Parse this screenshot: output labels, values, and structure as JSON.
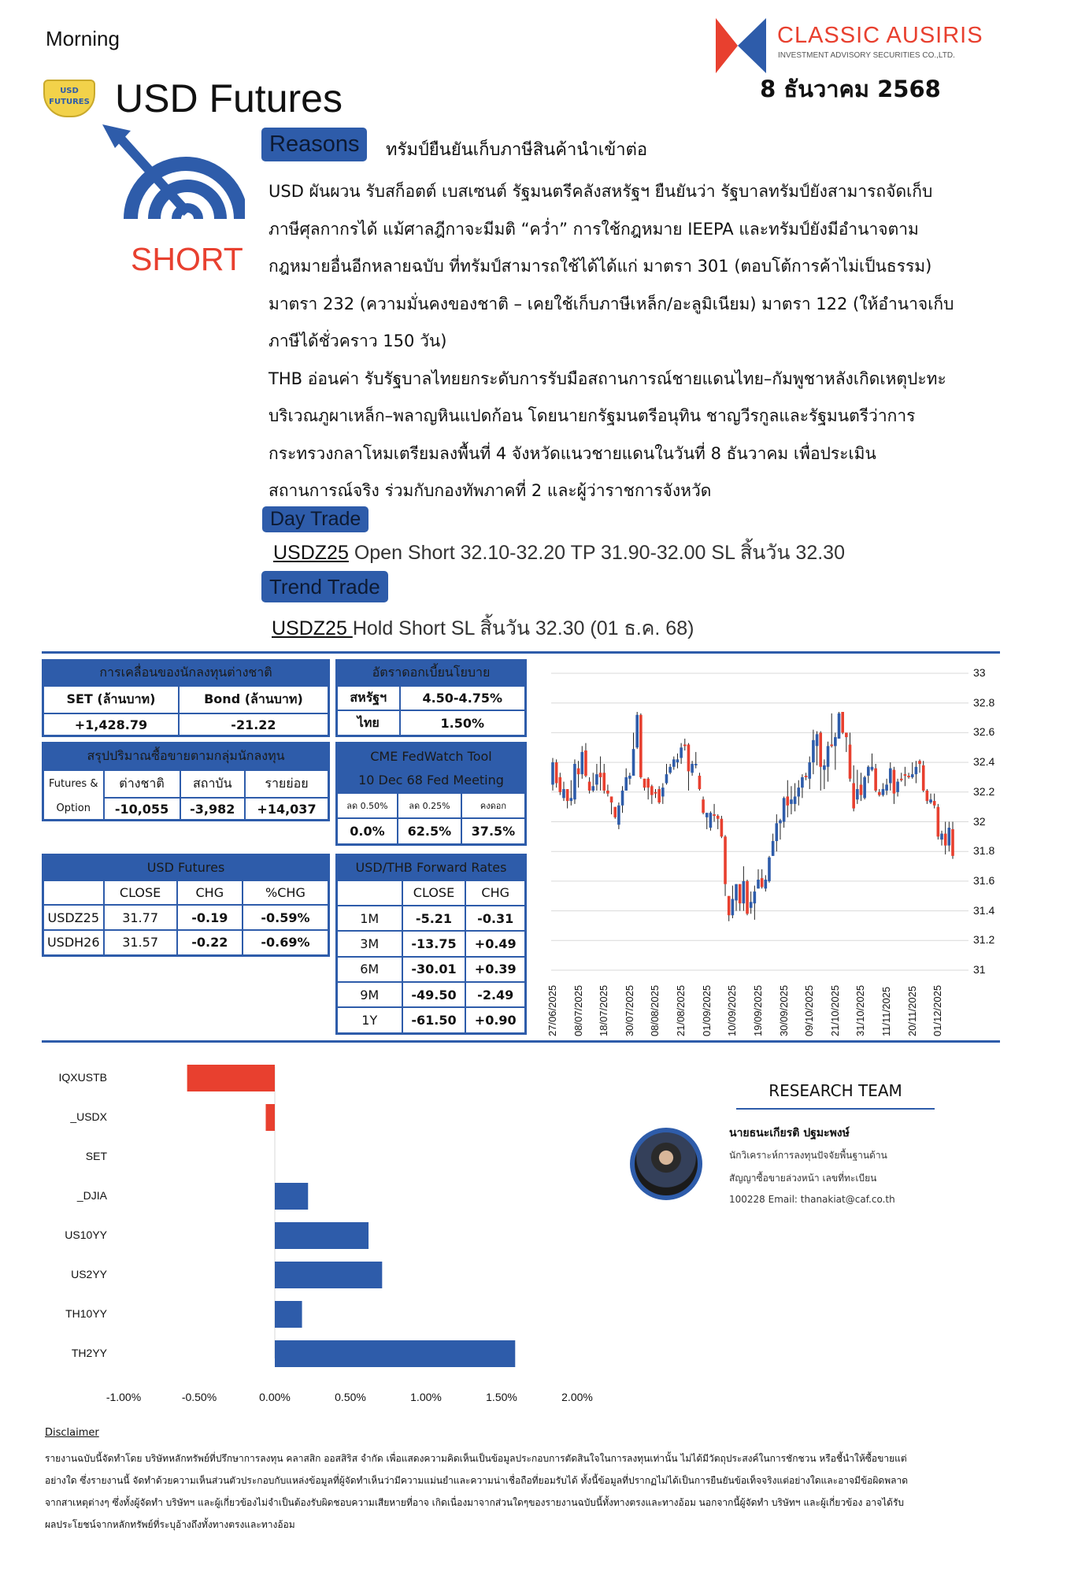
{
  "header": {
    "session": "Morning",
    "title": "USD Futures",
    "date": "8 ธันวาคม 2568",
    "logo_name": "CLASSIC AUSIRIS",
    "logo_sub": "INVESTMENT ADVISORY SECURITIES CO.,LTD.",
    "badge_text": "USD FUTURES",
    "signal": "SHORT"
  },
  "colors": {
    "brand_blue": "#2e5caa",
    "brand_red": "#e8402f",
    "up": "#2e5caa",
    "down": "#e8402f"
  },
  "reasons": {
    "label": "Reasons",
    "headline": "ทรัมป์ยืนยันเก็บภาษีสินค้านำเข้าต่อ",
    "lines": [
      "USD ผันผวน รับสก็อตต์ เบสเซนต์ รัฐมนตรีคลังสหรัฐฯ ยืนยันว่า รัฐบาลทรัมป์ยังสามารถจัดเก็บ",
      "ภาษีศุลกากรได้ แม้ศาลฎีกาจะมีมติ “คว่ำ” การใช้กฎหมาย IEEPA และทรัมป์ยังมีอำนาจตาม",
      "กฎหมายอื่นอีกหลายฉบับ ที่ทรัมป์สามารถใช้ได้ได้แก่ มาตรา 301 (ตอบโต้การค้าไม่เป็นธรรม)",
      "มาตรา 232 (ความมั่นคงของชาติ – เคยใช้เก็บภาษีเหล็ก/อะลูมิเนียม) มาตรา 122 (ให้อำนาจเก็บ",
      "ภาษีได้ชั่วคราว 150 วัน)",
      "THB อ่อนค่า รับรัฐบาลไทยยกระดับการรับมือสถานการณ์ชายแดนไทย–กัมพูชาหลังเกิดเหตุปะทะ",
      "บริเวณภูผาเหล็ก–พลาญหินแปดก้อน โดยนายกรัฐมนตรีอนุทิน ชาญวีรกูลและรัฐมนตรีว่าการ",
      "กระทรวงกลาโหมเตรียมลงพื้นที่ 4 จังหวัดแนวชายแดนในวันที่ 8 ธันวาคม เพื่อประเมิน",
      "สถานการณ์จริง ร่วมกับกองทัพภาคที่ 2 และผู้ว่าราชการจังหวัด"
    ]
  },
  "day_trade": {
    "label": "Day Trade",
    "symbol": "USDZ25",
    "text": " Open Short 32.10-32.20 TP 31.90-32.00 SL สิ้นวัน 32.30"
  },
  "trend_trade": {
    "label": "Trend Trade",
    "symbol": "USDZ25 ",
    "text": "Hold Short SL สิ้นวัน 32.30 (01 ธ.ค. 68)"
  },
  "foreign_flow": {
    "title": "การเคลื่อนของนักลงทุนต่างชาติ",
    "headers": [
      "SET (ล้านบาท)",
      "Bond (ล้านบาท)"
    ],
    "values": [
      "+1,428.79",
      "-21.22"
    ]
  },
  "policy_rate": {
    "title": "อัตราดอกเบี้ยนโยบาย",
    "rows": [
      [
        "สหรัฐฯ",
        "4.50-4.75%"
      ],
      [
        "ไทย",
        "1.50%"
      ]
    ]
  },
  "investor_groups": {
    "title": "สรุปปริมาณซื้อขายตามกลุ่มนักลงทุน",
    "label1": "Futures &",
    "label2": "Option",
    "headers": [
      "ต่างชาติ",
      "สถาบัน",
      "รายย่อย"
    ],
    "values": [
      "-10,055",
      "-3,982",
      "+14,037"
    ]
  },
  "fedwatch": {
    "title": "CME FedWatch Tool",
    "subtitle": "10 Dec 68 Fed Meeting",
    "headers": [
      "ลด 0.50%",
      "ลด 0.25%",
      "คงดอก"
    ],
    "values": [
      "0.0%",
      "62.5%",
      "37.5%"
    ]
  },
  "usd_futures": {
    "title": "USD Futures",
    "headers": [
      "",
      "CLOSE",
      "CHG",
      "%CHG"
    ],
    "rows": [
      [
        "USDZ25",
        "31.77",
        "-0.19",
        "-0.59%"
      ],
      [
        "USDH26",
        "31.57",
        "-0.22",
        "-0.69%"
      ]
    ]
  },
  "forward": {
    "title": "USD/THB Forward Rates",
    "headers": [
      "",
      "CLOSE",
      "CHG"
    ],
    "rows": [
      [
        "1M",
        "-5.21",
        "-0.31"
      ],
      [
        "3M",
        "-13.75",
        "+0.49"
      ],
      [
        "6M",
        "-30.01",
        "+0.39"
      ],
      [
        "9M",
        "-49.50",
        "-2.49"
      ],
      [
        "1Y",
        "-61.50",
        "+0.90"
      ]
    ]
  },
  "chart_data": [
    {
      "type": "candlestick",
      "ylim": [
        31,
        33
      ],
      "yticks": [
        "33",
        "32.8",
        "32.6",
        "32.4",
        "32.2",
        "32",
        "31.8",
        "31.6",
        "31.4",
        "31.2",
        "31"
      ],
      "grid": true,
      "xticks": [
        "27/06/2025",
        "08/07/2025",
        "18/07/2025",
        "30/07/2025",
        "08/08/2025",
        "21/08/2025",
        "01/09/2025",
        "10/09/2025",
        "19/09/2025",
        "30/09/2025",
        "09/10/2025",
        "21/10/2025",
        "31/10/2025",
        "11/11/2025",
        "20/11/2025",
        "01/12/2025"
      ],
      "ohlc": [
        [
          32.25,
          32.43,
          32.21,
          32.4
        ],
        [
          32.4,
          32.42,
          32.23,
          32.26
        ],
        [
          32.3,
          32.33,
          32.18,
          32.2
        ],
        [
          32.16,
          32.27,
          32.14,
          32.22
        ],
        [
          32.22,
          32.22,
          32.09,
          32.14
        ],
        [
          32.14,
          32.28,
          32.11,
          32.16
        ],
        [
          32.15,
          32.42,
          32.12,
          32.39
        ],
        [
          32.36,
          32.41,
          32.23,
          32.32
        ],
        [
          32.32,
          32.51,
          32.29,
          32.47
        ],
        [
          32.48,
          32.53,
          32.3,
          32.31
        ],
        [
          32.27,
          32.3,
          32.19,
          32.21
        ],
        [
          32.21,
          32.33,
          32.2,
          32.24
        ],
        [
          32.25,
          32.39,
          32.21,
          32.32
        ],
        [
          32.33,
          32.44,
          32.21,
          32.3
        ],
        [
          32.33,
          32.39,
          32.19,
          32.21
        ],
        [
          32.21,
          32.25,
          32.17,
          32.19
        ],
        [
          32.17,
          32.17,
          32.05,
          32.13
        ],
        [
          32.1,
          32.1,
          32.02,
          32.03
        ],
        [
          31.98,
          32.13,
          31.95,
          32.11
        ],
        [
          32.11,
          32.24,
          32.06,
          32.21
        ],
        [
          32.21,
          32.36,
          32.21,
          32.3
        ],
        [
          32.29,
          32.33,
          32.25,
          32.31
        ],
        [
          32.31,
          32.6,
          32.31,
          32.49
        ],
        [
          32.5,
          32.74,
          32.49,
          32.72
        ],
        [
          32.72,
          32.73,
          32.29,
          32.3
        ],
        [
          32.29,
          32.29,
          32.21,
          32.23
        ],
        [
          32.29,
          32.3,
          32.15,
          32.23
        ],
        [
          32.24,
          32.25,
          32.12,
          32.18
        ],
        [
          32.2,
          32.22,
          32.16,
          32.19
        ],
        [
          32.22,
          32.24,
          32.12,
          32.13
        ],
        [
          32.17,
          32.26,
          32.12,
          32.23
        ],
        [
          32.26,
          32.39,
          32.25,
          32.32
        ],
        [
          32.33,
          32.39,
          32.32,
          32.37
        ],
        [
          32.37,
          32.44,
          32.35,
          32.42
        ],
        [
          32.4,
          32.46,
          32.36,
          32.42
        ],
        [
          32.43,
          32.53,
          32.39,
          32.5
        ],
        [
          32.52,
          32.56,
          32.48,
          32.51
        ],
        [
          32.52,
          32.53,
          32.21,
          32.34
        ],
        [
          32.33,
          32.41,
          32.31,
          32.39
        ],
        [
          32.38,
          32.47,
          32.36,
          32.39
        ],
        [
          32.31,
          32.33,
          32.21,
          32.22
        ],
        [
          32.15,
          32.17,
          32.05,
          32.06
        ],
        [
          32.03,
          32.06,
          31.95,
          32.06
        ],
        [
          31.96,
          32.07,
          31.94,
          32.06
        ],
        [
          32.05,
          32.12,
          32.0,
          32.04
        ],
        [
          32.04,
          32.05,
          31.95,
          32.02
        ],
        [
          32.02,
          32.04,
          31.89,
          31.9
        ],
        [
          31.9,
          31.91,
          31.5,
          31.58
        ],
        [
          31.5,
          31.5,
          31.33,
          31.37
        ],
        [
          31.37,
          31.57,
          31.35,
          31.48
        ],
        [
          31.47,
          31.58,
          31.4,
          31.58
        ],
        [
          31.58,
          31.58,
          31.4,
          31.45
        ],
        [
          31.45,
          31.7,
          31.4,
          31.6
        ],
        [
          31.6,
          31.61,
          31.37,
          31.38
        ],
        [
          31.42,
          31.53,
          31.38,
          31.46
        ],
        [
          31.45,
          31.57,
          31.34,
          31.53
        ],
        [
          31.55,
          31.68,
          31.55,
          31.61
        ],
        [
          31.62,
          31.68,
          31.55,
          31.56
        ],
        [
          31.55,
          31.64,
          31.53,
          31.61
        ],
        [
          31.6,
          31.77,
          31.59,
          31.76
        ],
        [
          31.77,
          31.92,
          31.77,
          31.87
        ],
        [
          31.87,
          32.05,
          31.8,
          31.99
        ],
        [
          31.99,
          32.02,
          31.88,
          32.01
        ],
        [
          32.0,
          32.17,
          31.96,
          32.16
        ],
        [
          32.17,
          32.28,
          32.03,
          32.11
        ],
        [
          32.12,
          32.24,
          32.05,
          32.15
        ],
        [
          32.12,
          32.26,
          32.07,
          32.17
        ],
        [
          32.17,
          32.28,
          32.11,
          32.23
        ],
        [
          32.23,
          32.32,
          32.16,
          32.3
        ],
        [
          32.31,
          32.33,
          32.28,
          32.3
        ],
        [
          32.29,
          32.44,
          32.22,
          32.4
        ],
        [
          32.4,
          32.62,
          32.32,
          32.55
        ],
        [
          32.51,
          32.61,
          32.38,
          32.59
        ],
        [
          32.6,
          32.61,
          32.21,
          32.37
        ],
        [
          32.35,
          32.42,
          32.22,
          32.38
        ],
        [
          32.37,
          32.54,
          32.27,
          32.51
        ],
        [
          32.52,
          32.73,
          32.5,
          32.51
        ],
        [
          32.51,
          32.6,
          32.35,
          32.57
        ],
        [
          32.56,
          32.74,
          32.56,
          32.73
        ],
        [
          32.74,
          32.74,
          32.59,
          32.6
        ],
        [
          32.6,
          32.6,
          32.47,
          32.57
        ],
        [
          32.52,
          32.6,
          32.27,
          32.29
        ],
        [
          32.26,
          32.38,
          32.07,
          32.09
        ],
        [
          32.15,
          32.35,
          32.12,
          32.22
        ],
        [
          32.25,
          32.33,
          32.14,
          32.18
        ],
        [
          32.16,
          32.31,
          32.15,
          32.3
        ],
        [
          32.31,
          32.38,
          32.26,
          32.37
        ],
        [
          32.35,
          32.46,
          32.34,
          32.37
        ],
        [
          32.36,
          32.39,
          32.2,
          32.21
        ],
        [
          32.2,
          32.22,
          32.17,
          32.18
        ],
        [
          32.18,
          32.26,
          32.17,
          32.22
        ],
        [
          32.21,
          32.29,
          32.18,
          32.25
        ],
        [
          32.26,
          32.4,
          32.21,
          32.36
        ],
        [
          32.35,
          32.37,
          32.12,
          32.19
        ],
        [
          32.2,
          32.29,
          32.17,
          32.27
        ],
        [
          32.29,
          32.33,
          32.27,
          32.28
        ],
        [
          32.32,
          32.37,
          32.24,
          32.31
        ],
        [
          32.31,
          32.33,
          32.29,
          32.3
        ],
        [
          32.3,
          32.4,
          32.29,
          32.32
        ],
        [
          32.32,
          32.41,
          32.26,
          32.37
        ],
        [
          32.41,
          32.42,
          32.33,
          32.39
        ],
        [
          32.38,
          32.41,
          32.2,
          32.21
        ],
        [
          32.21,
          32.22,
          32.12,
          32.14
        ],
        [
          32.13,
          32.19,
          32.12,
          32.15
        ],
        [
          32.14,
          32.19,
          32.09,
          32.11
        ],
        [
          32.1,
          32.12,
          31.88,
          31.9
        ],
        [
          31.88,
          31.94,
          31.84,
          31.92
        ],
        [
          31.92,
          32.0,
          31.78,
          31.84
        ],
        [
          31.84,
          32.0,
          31.8,
          31.96
        ],
        [
          31.95,
          32.0,
          31.75,
          31.77
        ]
      ]
    },
    {
      "type": "bar",
      "orientation": "horizontal",
      "categories": [
        "IQXUSTB",
        "_USDX",
        "SET",
        "_DJIA",
        "US10YY",
        "US2YY",
        "TH10YY",
        "TH2YY"
      ],
      "values": [
        -0.58,
        -0.06,
        0,
        0.22,
        0.62,
        0.71,
        0.18,
        1.59
      ],
      "xlim": [
        -1,
        2
      ],
      "xticks": [
        "-1.00%",
        "-0.50%",
        "0.00%",
        "0.50%",
        "1.00%",
        "1.50%",
        "2.00%"
      ]
    }
  ],
  "research": {
    "title": "RESEARCH TEAM",
    "name": "นายธนะเกียรติ ปฐมะพงษ์",
    "role1": "นักวิเคราะห์การลงทุนปัจจัยพื้นฐานด้าน",
    "role2": "สัญญาซื้อขายล่วงหน้า เลขที่ทะเบียน",
    "contact": "100228 Email:  thanakiat@caf.co.th"
  },
  "disclaimer": {
    "title": "Disclaimer",
    "lines": [
      "รายงานฉบับนี้จัดทำโดย บริษัทหลักทรัพย์ที่ปรึกษาการลงทุน คลาสสิก ออสสิริส จำกัด เพื่อแสดงความคิดเห็นเป็นข้อมูลประกอบการตัดสินใจในการลงทุนเท่านั้น  ไม่ได้มีวัตถุประสงค์ในการชักชวน  หรือชี้นำให้ซื้อขายแต่",
      "อย่างใด ซึ่งรายงานนี้ จัดทำด้วยความเห็นส่วนตัวประกอบกับแหล่งข้อมูลที่ผู้จัดทำเห็นว่ามีความแม่นยำและความน่าเชื่อถือที่ยอมรับได้  ทั้งนี้ข้อมูลที่ปรากฏไม่ได้เป็นการยืนยันข้อเท็จจริงแต่อย่างใดและอาจมีข้อผิดพลาด",
      "จากสาเหตุต่างๆ ซึ่งทั้งผู้จัดทำ บริษัทฯ และผู้เกี่ยวข้องไม่จำเป็นต้องรับผิดชอบความเสียหายที่อาจ  เกิดเนื่องมาจากส่วนใดๆของรายงานฉบับนี้ทั้งทางตรงและทางอ้อม  นอกจากนี้ผู้จัดทำ บริษัทฯ และผู้เกี่ยวข้อง อาจได้รับ",
      "ผลประโยชน์จากหลักทรัพย์ที่ระบุอ้างถึงทั้งทางตรงและทางอ้อม"
    ]
  }
}
